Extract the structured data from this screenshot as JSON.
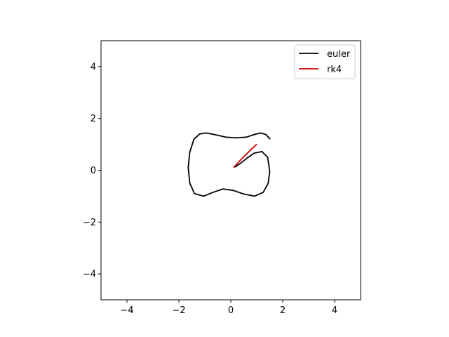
{
  "chart_data": {
    "type": "line",
    "title": "",
    "xlabel": "",
    "ylabel": "",
    "xlim": [
      -5,
      5
    ],
    "ylim": [
      -5,
      5
    ],
    "xticks": [
      -4,
      -2,
      0,
      2,
      4
    ],
    "yticks": [
      -4,
      -2,
      0,
      2,
      4
    ],
    "xtick_labels": [
      "−4",
      "−2",
      "0",
      "2",
      "4"
    ],
    "ytick_labels": [
      "−4",
      "−2",
      "0",
      "2",
      "4"
    ],
    "grid": false,
    "legend_position": "top-right",
    "series": [
      {
        "name": "euler",
        "color": "#000000",
        "points": [
          [
            1.52,
            1.2
          ],
          [
            1.35,
            1.38
          ],
          [
            1.15,
            1.44
          ],
          [
            0.9,
            1.38
          ],
          [
            0.6,
            1.28
          ],
          [
            0.2,
            1.25
          ],
          [
            -0.2,
            1.28
          ],
          [
            -0.6,
            1.37
          ],
          [
            -0.95,
            1.44
          ],
          [
            -1.2,
            1.4
          ],
          [
            -1.42,
            1.2
          ],
          [
            -1.58,
            0.7
          ],
          [
            -1.64,
            0.1
          ],
          [
            -1.58,
            -0.5
          ],
          [
            -1.4,
            -0.9
          ],
          [
            -1.05,
            -1.0
          ],
          [
            -0.7,
            -0.86
          ],
          [
            -0.3,
            -0.72
          ],
          [
            0.1,
            -0.78
          ],
          [
            0.5,
            -0.92
          ],
          [
            0.92,
            -1.0
          ],
          [
            1.25,
            -0.85
          ],
          [
            1.44,
            -0.5
          ],
          [
            1.5,
            -0.05
          ],
          [
            1.42,
            0.5
          ],
          [
            1.2,
            0.72
          ],
          [
            0.9,
            0.66
          ],
          [
            0.6,
            0.45
          ],
          [
            0.35,
            0.25
          ],
          [
            0.15,
            0.12
          ]
        ]
      },
      {
        "name": "rk4",
        "color": "#cc0000",
        "points": [
          [
            1.0,
            1.0
          ],
          [
            0.8,
            0.82
          ],
          [
            0.6,
            0.62
          ],
          [
            0.4,
            0.42
          ],
          [
            0.25,
            0.26
          ],
          [
            0.1,
            0.1
          ]
        ]
      }
    ]
  }
}
